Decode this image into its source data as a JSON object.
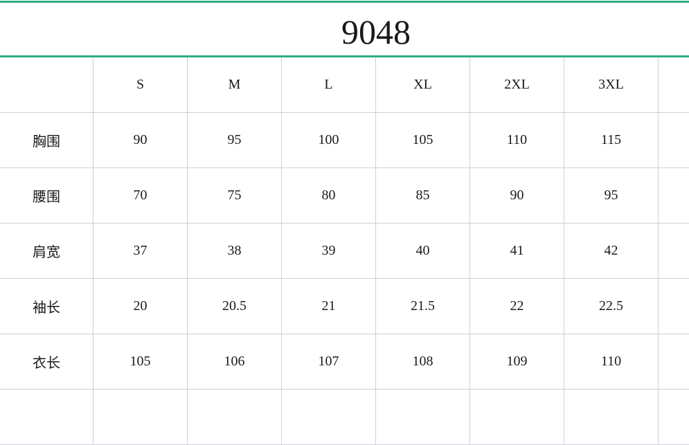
{
  "title": "9048",
  "colors": {
    "accent_line": "#2bb080",
    "grid": "#cfcfd6"
  },
  "table": {
    "headers": [
      "",
      "S",
      "M",
      "L",
      "XL",
      "2XL",
      "3XL"
    ],
    "rows": [
      {
        "label": "胸围",
        "values": [
          "90",
          "95",
          "100",
          "105",
          "110",
          "115"
        ]
      },
      {
        "label": "腰围",
        "values": [
          "70",
          "75",
          "80",
          "85",
          "90",
          "95"
        ]
      },
      {
        "label": "肩宽",
        "values": [
          "37",
          "38",
          "39",
          "40",
          "41",
          "42"
        ]
      },
      {
        "label": "袖长",
        "values": [
          "20",
          "20.5",
          "21",
          "21.5",
          "22",
          "22.5"
        ]
      },
      {
        "label": "衣长",
        "values": [
          "105",
          "106",
          "107",
          "108",
          "109",
          "110"
        ]
      }
    ]
  }
}
